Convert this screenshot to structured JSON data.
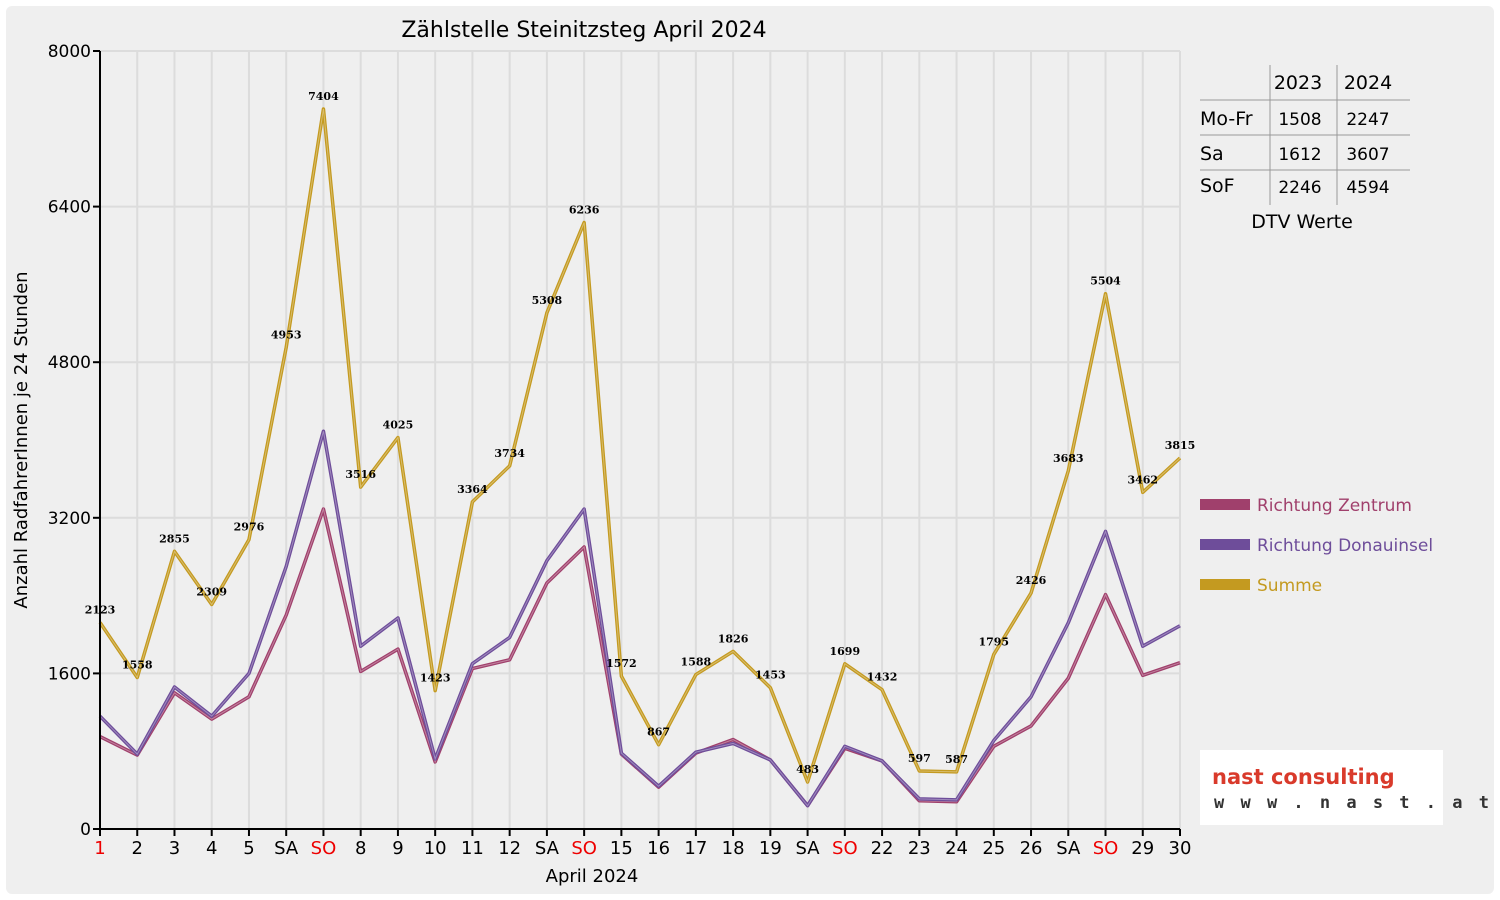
{
  "chart_data": {
    "type": "line",
    "title": "Zählstelle Steinitzsteg April 2024",
    "xlabel": "April 2024",
    "ylabel": "Anzahl RadfahrerInnen je 24 Stunden",
    "ylim": [
      0,
      8000
    ],
    "yticks": [
      "0",
      "1600",
      "3200",
      "4800",
      "6400",
      "8000"
    ],
    "ytick_values": [
      0,
      1600,
      3200,
      4800,
      6400,
      8000
    ],
    "grid": true,
    "legend_position": "right",
    "categories": [
      "1",
      "2",
      "3",
      "4",
      "5",
      "SA",
      "SO",
      "8",
      "9",
      "10",
      "11",
      "12",
      "SA",
      "SO",
      "15",
      "16",
      "17",
      "18",
      "19",
      "SA",
      "SO",
      "22",
      "23",
      "24",
      "25",
      "26",
      "SA",
      "SO",
      "29",
      "30"
    ],
    "red_ticks": [
      0,
      6,
      13,
      20,
      27
    ],
    "series": [
      {
        "name": "Richtung Zentrum",
        "color": "#a0406c",
        "values": [
          950,
          760,
          1400,
          1130,
          1360,
          2200,
          3290,
          1620,
          1850,
          690,
          1650,
          1740,
          2530,
          2900,
          770,
          430,
          780,
          920,
          710,
          240,
          830,
          700,
          290,
          280,
          850,
          1060,
          1550,
          2410,
          1580,
          1710
        ]
      },
      {
        "name": "Richtung Donauinsel",
        "color": "#6e4d9a",
        "values": [
          1160,
          770,
          1460,
          1160,
          1600,
          2700,
          4090,
          1880,
          2170,
          720,
          1700,
          1970,
          2760,
          3290,
          780,
          440,
          790,
          880,
          710,
          240,
          850,
          700,
          310,
          300,
          910,
          1360,
          2120,
          3060,
          1880,
          2090
        ]
      },
      {
        "name": "Summe",
        "color": "#c49a20",
        "values": [
          2123,
          1558,
          2855,
          2309,
          2976,
          4953,
          7404,
          3516,
          4025,
          1423,
          3364,
          3734,
          5308,
          6236,
          1572,
          867,
          1588,
          1826,
          1453,
          483,
          1699,
          1432,
          597,
          587,
          1795,
          2426,
          3683,
          5504,
          3462,
          3815
        ],
        "labels": [
          "2123",
          "1558",
          "2855",
          "2309",
          "2976",
          "4953",
          "7404",
          "3516",
          "4025",
          "1423",
          "3364",
          "3734",
          "5308",
          "6236",
          "1572",
          "867",
          "1588",
          "1826",
          "1453",
          "483",
          "1699",
          "1432",
          "597",
          "587",
          "1795",
          "2426",
          "3683",
          "5504",
          "3462",
          "3815"
        ]
      }
    ]
  },
  "dtv_table": {
    "headers": [
      "2023",
      "2024"
    ],
    "rows": [
      {
        "label": "Mo-Fr",
        "v2023": "1508",
        "v2024": "2247"
      },
      {
        "label": "Sa",
        "v2023": "1612",
        "v2024": "3607"
      },
      {
        "label": "SoF",
        "v2023": "2246",
        "v2024": "4594"
      }
    ],
    "caption": "DTV Werte"
  },
  "logo": {
    "name": "nast consulting",
    "url": "w w w . n a s t . a t",
    "color": "#d93a2b"
  }
}
